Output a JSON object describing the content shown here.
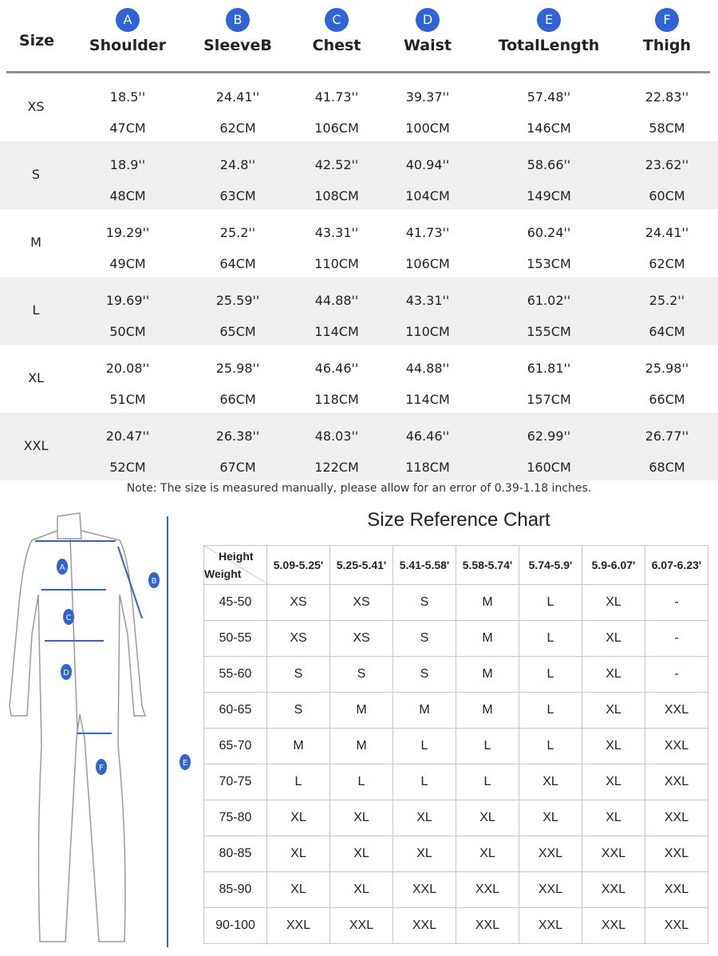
{
  "size_table": {
    "size_label": "Size",
    "columns": [
      {
        "badge": "A",
        "label": "Shoulder"
      },
      {
        "badge": "B",
        "label": "SleeveB"
      },
      {
        "badge": "C",
        "label": "Chest"
      },
      {
        "badge": "D",
        "label": "Waist"
      },
      {
        "badge": "E",
        "label": "TotalLength"
      },
      {
        "badge": "F",
        "label": "Thigh"
      }
    ],
    "rows": [
      {
        "size": "XS",
        "inch": [
          "18.5''",
          "24.41''",
          "41.73''",
          "39.37''",
          "57.48''",
          "22.83''"
        ],
        "cm": [
          "47CM",
          "62CM",
          "106CM",
          "100CM",
          "146CM",
          "58CM"
        ]
      },
      {
        "size": "S",
        "inch": [
          "18.9''",
          "24.8''",
          "42.52''",
          "40.94''",
          "58.66''",
          "23.62''"
        ],
        "cm": [
          "48CM",
          "63CM",
          "108CM",
          "104CM",
          "149CM",
          "60CM"
        ]
      },
      {
        "size": "M",
        "inch": [
          "19.29''",
          "25.2''",
          "43.31''",
          "41.73''",
          "60.24''",
          "24.41''"
        ],
        "cm": [
          "49CM",
          "64CM",
          "110CM",
          "106CM",
          "153CM",
          "62CM"
        ]
      },
      {
        "size": "L",
        "inch": [
          "19.69''",
          "25.59''",
          "44.88''",
          "43.31''",
          "61.02''",
          "25.2''"
        ],
        "cm": [
          "50CM",
          "65CM",
          "114CM",
          "110CM",
          "155CM",
          "64CM"
        ]
      },
      {
        "size": "XL",
        "inch": [
          "20.08''",
          "25.98''",
          "46.46''",
          "44.88''",
          "61.81''",
          "25.98''"
        ],
        "cm": [
          "51CM",
          "66CM",
          "118CM",
          "114CM",
          "157CM",
          "66CM"
        ]
      },
      {
        "size": "XXL",
        "inch": [
          "20.47''",
          "26.38''",
          "48.03''",
          "46.46''",
          "62.99''",
          "26.77''"
        ],
        "cm": [
          "52CM",
          "67CM",
          "122CM",
          "118CM",
          "160CM",
          "68CM"
        ]
      }
    ],
    "note": "Note: The size is measured manually, please allow for an error of 0.39-1.18 inches."
  },
  "figure": {
    "labels": [
      "A",
      "B",
      "C",
      "D",
      "E",
      "F"
    ],
    "accent": "#2f63d8"
  },
  "reference": {
    "title": "Size Reference  Chart",
    "corner_top": "Height",
    "corner_bottom": "Weight",
    "heights": [
      "5.09-5.25'",
      "5.25-5.41'",
      "5.41-5.58'",
      "5.58-5.74'",
      "5.74-5.9'",
      "5.9-6.07'",
      "6.07-6.23'"
    ],
    "rows": [
      {
        "weight": "45-50",
        "sizes": [
          "XS",
          "XS",
          "S",
          "M",
          "L",
          "XL",
          "-"
        ]
      },
      {
        "weight": "50-55",
        "sizes": [
          "XS",
          "XS",
          "S",
          "M",
          "L",
          "XL",
          "-"
        ]
      },
      {
        "weight": "55-60",
        "sizes": [
          "S",
          "S",
          "S",
          "M",
          "L",
          "XL",
          "-"
        ]
      },
      {
        "weight": "60-65",
        "sizes": [
          "S",
          "M",
          "M",
          "M",
          "L",
          "XL",
          "XXL"
        ]
      },
      {
        "weight": "65-70",
        "sizes": [
          "M",
          "M",
          "L",
          "L",
          "L",
          "XL",
          "XXL"
        ]
      },
      {
        "weight": "70-75",
        "sizes": [
          "L",
          "L",
          "L",
          "L",
          "XL",
          "XL",
          "XXL"
        ]
      },
      {
        "weight": "75-80",
        "sizes": [
          "XL",
          "XL",
          "XL",
          "XL",
          "XL",
          "XL",
          "XXL"
        ]
      },
      {
        "weight": "80-85",
        "sizes": [
          "XL",
          "XL",
          "XL",
          "XL",
          "XXL",
          "XXL",
          "XXL"
        ]
      },
      {
        "weight": "85-90",
        "sizes": [
          "XL",
          "XL",
          "XXL",
          "XXL",
          "XXL",
          "XXL",
          "XXL"
        ]
      },
      {
        "weight": "90-100",
        "sizes": [
          "XXL",
          "XXL",
          "XXL",
          "XXL",
          "XXL",
          "XXL",
          "XXL"
        ]
      }
    ]
  }
}
